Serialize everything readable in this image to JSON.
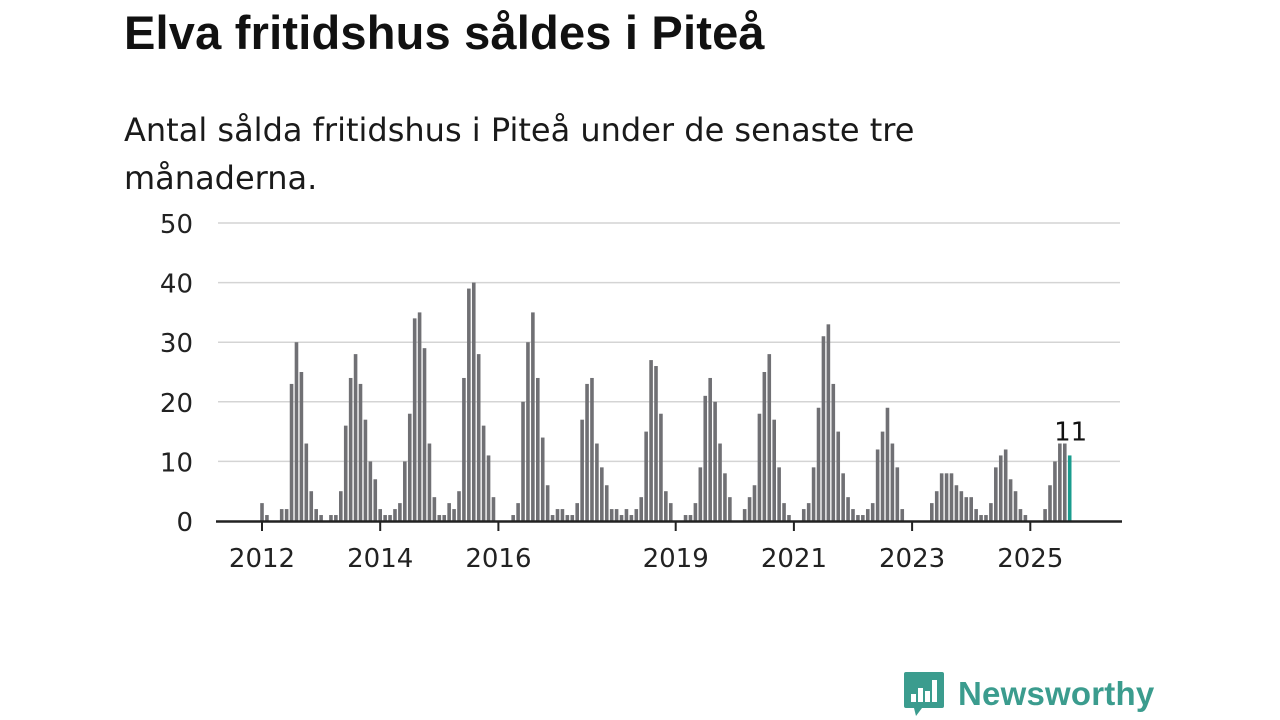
{
  "title": "Elva fritidshus såldes i Piteå",
  "subtitle": "Antal sålda fritidshus i Piteå under de senaste tre månaderna.",
  "brand": {
    "name": "Newsworthy",
    "logo_icon": "newsworthy-bar-chart-logo",
    "color": "#3b9c8e"
  },
  "colors": {
    "bar": "#707074",
    "highlight": "#1a9c8e",
    "grid": "#d4d4d4",
    "axis": "#222222"
  },
  "chart_data": {
    "type": "bar",
    "title": "Elva fritidshus såldes i Piteå",
    "subtitle": "Antal sålda fritidshus i Piteå under de senaste tre månaderna.",
    "xlabel": "",
    "ylabel": "",
    "ylim": [
      0,
      50
    ],
    "yticks": [
      0,
      10,
      20,
      30,
      40,
      50
    ],
    "yticklabels": [
      "0",
      "10",
      "20",
      "30",
      "40",
      "50"
    ],
    "xticks": [
      {
        "label": "2012",
        "date": "2012-01"
      },
      {
        "label": "2014",
        "date": "2014-01"
      },
      {
        "label": "2016",
        "date": "2016-01"
      },
      {
        "label": "2019",
        "date": "2019-01"
      },
      {
        "label": "2021",
        "date": "2021-01"
      },
      {
        "label": "2023",
        "date": "2023-01"
      },
      {
        "label": "2025",
        "date": "2025-01"
      }
    ],
    "grid": true,
    "legend": "none",
    "highlight_label": "11",
    "series": [
      {
        "start": "2012-01",
        "frequency": "monthly",
        "values": [
          3,
          1,
          0,
          0,
          2,
          2,
          23,
          30,
          25,
          13,
          5,
          2,
          1,
          0,
          1,
          1,
          5,
          16,
          24,
          28,
          23,
          17,
          10,
          7,
          2,
          1,
          1,
          2,
          3,
          10,
          18,
          34,
          35,
          29,
          13,
          4,
          1,
          1,
          3,
          2,
          5,
          24,
          39,
          40,
          28,
          16,
          11,
          4,
          0,
          0,
          0,
          1,
          3,
          20,
          30,
          35,
          24,
          14,
          6,
          1,
          2,
          2,
          1,
          1,
          3,
          17,
          23,
          24,
          13,
          9,
          6,
          2,
          2,
          1,
          2,
          1,
          2,
          4,
          15,
          27,
          26,
          18,
          5,
          3,
          0,
          0,
          1,
          1,
          3,
          9,
          21,
          24,
          20,
          13,
          8,
          4,
          0,
          0,
          2,
          4,
          6,
          18,
          25,
          28,
          17,
          9,
          3,
          1,
          0,
          0,
          2,
          3,
          9,
          19,
          31,
          33,
          23,
          15,
          8,
          4,
          2,
          1,
          1,
          2,
          3,
          12,
          15,
          19,
          13,
          9,
          2,
          0,
          0,
          0,
          0,
          0,
          3,
          5,
          8,
          8,
          8,
          6,
          5,
          4,
          4,
          2,
          1,
          1,
          3,
          9,
          11,
          12,
          7,
          5,
          2,
          1,
          0,
          0,
          0,
          2,
          6,
          10,
          13,
          13,
          11
        ]
      }
    ]
  }
}
